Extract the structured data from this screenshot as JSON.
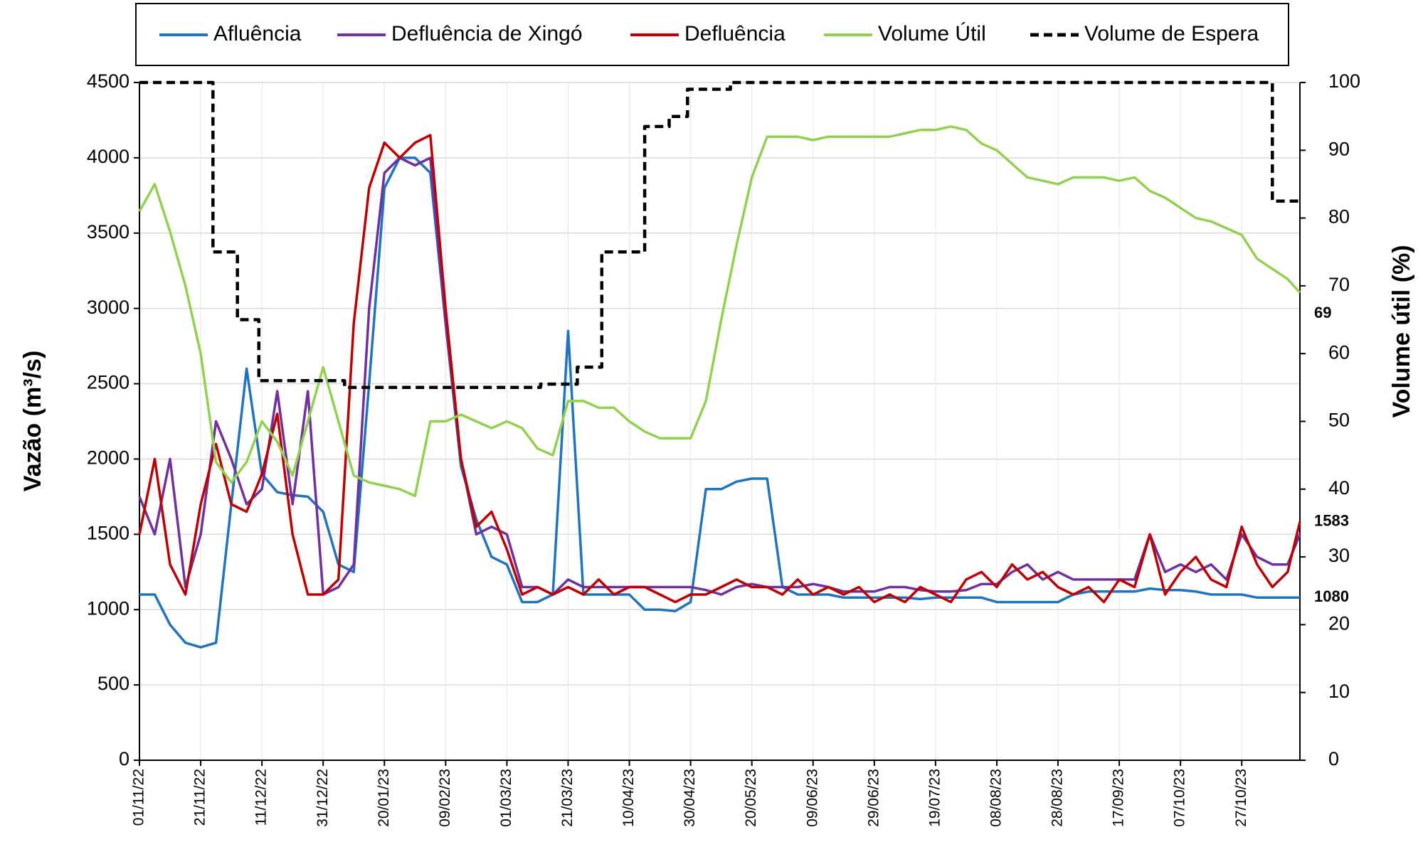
{
  "chart_data": {
    "type": "line",
    "y_label": "Vazão (m³/s)",
    "y2_label": "Volume útil (%)",
    "x": [
      "01/11/22",
      "06/11/22",
      "11/11/22",
      "16/11/22",
      "21/11/22",
      "26/11/22",
      "01/12/22",
      "06/12/22",
      "11/12/22",
      "16/12/22",
      "21/12/22",
      "26/12/22",
      "31/12/22",
      "05/01/23",
      "10/01/23",
      "15/01/23",
      "20/01/23",
      "25/01/23",
      "30/01/23",
      "04/02/23",
      "09/02/23",
      "14/02/23",
      "19/02/23",
      "24/02/23",
      "01/03/23",
      "06/03/23",
      "11/03/23",
      "16/03/23",
      "21/03/23",
      "26/03/23",
      "31/03/23",
      "05/04/23",
      "10/04/23",
      "15/04/23",
      "20/04/23",
      "25/04/23",
      "30/04/23",
      "05/05/23",
      "10/05/23",
      "15/05/23",
      "20/05/23",
      "25/05/23",
      "30/05/23",
      "04/06/23",
      "09/06/23",
      "14/06/23",
      "19/06/23",
      "24/06/23",
      "29/06/23",
      "04/07/23",
      "09/07/23",
      "14/07/23",
      "19/07/23",
      "24/07/23",
      "29/07/23",
      "03/08/23",
      "08/08/23",
      "13/08/23",
      "18/08/23",
      "23/08/23",
      "28/08/23",
      "02/09/23",
      "07/09/23",
      "12/09/23",
      "17/09/23",
      "22/09/23",
      "27/09/23",
      "02/10/23",
      "07/10/23",
      "12/10/23",
      "17/10/23",
      "22/10/23",
      "27/10/23",
      "01/11/23",
      "06/11/23",
      "11/11/23",
      "15/11/23"
    ],
    "xlim": [
      "01/11/22",
      "15/11/23"
    ],
    "xticks": [
      "01/11/22",
      "21/11/22",
      "11/12/22",
      "31/12/22",
      "20/01/23",
      "09/02/23",
      "01/03/23",
      "21/03/23",
      "10/04/23",
      "30/04/23",
      "20/05/23",
      "09/06/23",
      "29/06/23",
      "19/07/23",
      "08/08/23",
      "28/08/23",
      "17/09/23",
      "07/10/23",
      "27/10/23"
    ],
    "ylim": [
      0,
      4500
    ],
    "yticks": [
      0,
      500,
      1000,
      1500,
      2000,
      2500,
      3000,
      3500,
      4000,
      4500
    ],
    "y2lim": [
      0,
      100
    ],
    "y2ticks": [
      0,
      10,
      20,
      30,
      40,
      50,
      60,
      70,
      80,
      90,
      100
    ],
    "grid": true,
    "series": [
      {
        "name": "Afluência",
        "color": "#1f74c2",
        "values": [
          1100,
          1100,
          900,
          780,
          750,
          780,
          1700,
          2600,
          1900,
          1780,
          1760,
          1750,
          1650,
          1300,
          1250,
          2500,
          3800,
          4000,
          4000,
          3900,
          2900,
          1950,
          1600,
          1350,
          1300,
          1050,
          1050,
          1100,
          2850,
          1100,
          1100,
          1100,
          1100,
          1000,
          1000,
          990,
          1050,
          1800,
          1800,
          1850,
          1870,
          1870,
          1150,
          1100,
          1100,
          1100,
          1080,
          1080,
          1080,
          1080,
          1080,
          1070,
          1080,
          1080,
          1080,
          1080,
          1050,
          1050,
          1050,
          1050,
          1050,
          1100,
          1120,
          1120,
          1120,
          1120,
          1140,
          1130,
          1130,
          1120,
          1100,
          1100,
          1100,
          1080,
          1080,
          1080,
          1080
        ]
      },
      {
        "name": "Defluência de Xingó",
        "color": "#7030a0",
        "values": [
          1750,
          1500,
          2000,
          1150,
          1500,
          2250,
          2000,
          1700,
          1800,
          2450,
          1700,
          2450,
          1100,
          1150,
          1300,
          3000,
          3900,
          4000,
          3950,
          4000,
          2900,
          2000,
          1500,
          1550,
          1500,
          1150,
          1150,
          1100,
          1200,
          1150,
          1150,
          1150,
          1150,
          1150,
          1150,
          1150,
          1150,
          1130,
          1100,
          1150,
          1170,
          1150,
          1150,
          1150,
          1170,
          1150,
          1120,
          1120,
          1120,
          1150,
          1150,
          1130,
          1120,
          1120,
          1130,
          1170,
          1170,
          1250,
          1300,
          1200,
          1250,
          1200,
          1200,
          1200,
          1200,
          1200,
          1500,
          1250,
          1300,
          1250,
          1300,
          1200,
          1500,
          1350,
          1300,
          1300,
          1500
        ]
      },
      {
        "name": "Defluência",
        "color": "#c00000",
        "values": [
          1500,
          2000,
          1300,
          1100,
          1700,
          2100,
          1700,
          1650,
          1900,
          2300,
          1500,
          1100,
          1100,
          1200,
          2900,
          3800,
          4100,
          4000,
          4100,
          4150,
          3000,
          2000,
          1550,
          1650,
          1400,
          1100,
          1150,
          1100,
          1150,
          1100,
          1200,
          1100,
          1150,
          1150,
          1100,
          1050,
          1100,
          1100,
          1150,
          1200,
          1150,
          1150,
          1100,
          1200,
          1100,
          1150,
          1100,
          1150,
          1050,
          1100,
          1050,
          1150,
          1100,
          1050,
          1200,
          1250,
          1150,
          1300,
          1200,
          1250,
          1150,
          1100,
          1150,
          1050,
          1200,
          1150,
          1500,
          1100,
          1250,
          1350,
          1200,
          1150,
          1550,
          1300,
          1150,
          1250,
          1583
        ]
      },
      {
        "name": "Volume Útil",
        "color": "#92d050",
        "axis": "y2",
        "values": [
          81,
          85,
          78,
          70,
          60,
          44,
          41,
          44,
          50,
          47,
          42,
          50,
          58,
          50,
          42,
          41,
          40.5,
          40,
          39,
          50,
          50,
          51,
          50,
          49,
          50,
          49,
          46,
          45,
          53,
          53,
          52,
          52,
          50,
          48.5,
          47.5,
          47.5,
          47.5,
          53,
          65,
          76,
          86,
          92,
          92,
          92,
          91.5,
          92,
          92,
          92,
          92,
          92,
          92.5,
          93,
          93,
          93.5,
          93,
          91,
          90,
          88,
          86,
          85.5,
          85,
          86,
          86,
          86,
          85.5,
          86,
          84,
          83,
          81.5,
          80,
          79.5,
          78.5,
          77.5,
          74,
          72.5,
          71,
          69
        ]
      },
      {
        "name": "Volume de Espera",
        "color": "#000000",
        "axis": "y2",
        "dashed": true,
        "x": [
          "01/11/22",
          "25/11/22",
          "25/11/22",
          "03/12/22",
          "03/12/22",
          "10/12/22",
          "10/12/22",
          "07/01/23",
          "07/01/23",
          "12/03/23",
          "12/03/23",
          "24/03/23",
          "24/03/23",
          "01/04/23",
          "01/04/23",
          "15/04/23",
          "15/04/23",
          "23/04/23",
          "23/04/23",
          "29/04/23",
          "29/04/23",
          "13/05/23",
          "13/05/23",
          "06/11/23",
          "06/11/23",
          "15/11/23"
        ],
        "values": [
          100,
          100,
          75,
          75,
          65,
          65,
          56,
          56,
          55,
          55,
          55.5,
          55.5,
          58,
          58,
          75,
          75,
          93.5,
          93.5,
          95,
          95,
          99,
          99,
          100,
          100,
          82.5,
          82.5
        ]
      }
    ]
  }
}
